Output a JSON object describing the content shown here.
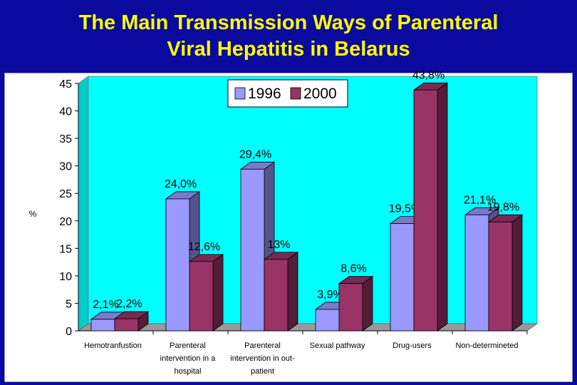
{
  "slide": {
    "title_line1": "The Main Transmission Ways of Parenteral",
    "title_line2": "Viral Hepatitis in Belarus"
  },
  "chart_data": {
    "type": "bar",
    "title": "The Main Transmission Ways of Parenteral Viral Hepatitis in Belarus",
    "xlabel": "",
    "ylabel": "%",
    "ylim": [
      0,
      45
    ],
    "yticks": [
      "0",
      "5",
      "10",
      "15",
      "20",
      "25",
      "30",
      "35",
      "40",
      "45"
    ],
    "categories": [
      [
        "Hemotranfustion"
      ],
      [
        "Parenteral",
        "intervention in a",
        "hospital"
      ],
      [
        "Parenteral",
        "intervention in out-",
        "patient"
      ],
      [
        "Sexual pathway"
      ],
      [
        "Drug-users"
      ],
      [
        "Non-determineted"
      ]
    ],
    "series": [
      {
        "name": "1996",
        "color": "#9999ff",
        "values": [
          2.1,
          24.0,
          29.4,
          3.9,
          19.5,
          21.1
        ],
        "labels": [
          "2,1%",
          "24,0%",
          "29,4%",
          "3,9%",
          "19,5%",
          "21,1%"
        ]
      },
      {
        "name": "2000",
        "color": "#993366",
        "values": [
          2.2,
          12.6,
          13,
          8.6,
          43.8,
          19.8
        ],
        "labels": [
          "2,2%",
          "12,6%",
          "13%",
          "8,6%",
          "43,8%",
          "19,8%"
        ]
      }
    ],
    "legend_position": "top-center",
    "grid": false,
    "plot_background": "#00ffff"
  }
}
